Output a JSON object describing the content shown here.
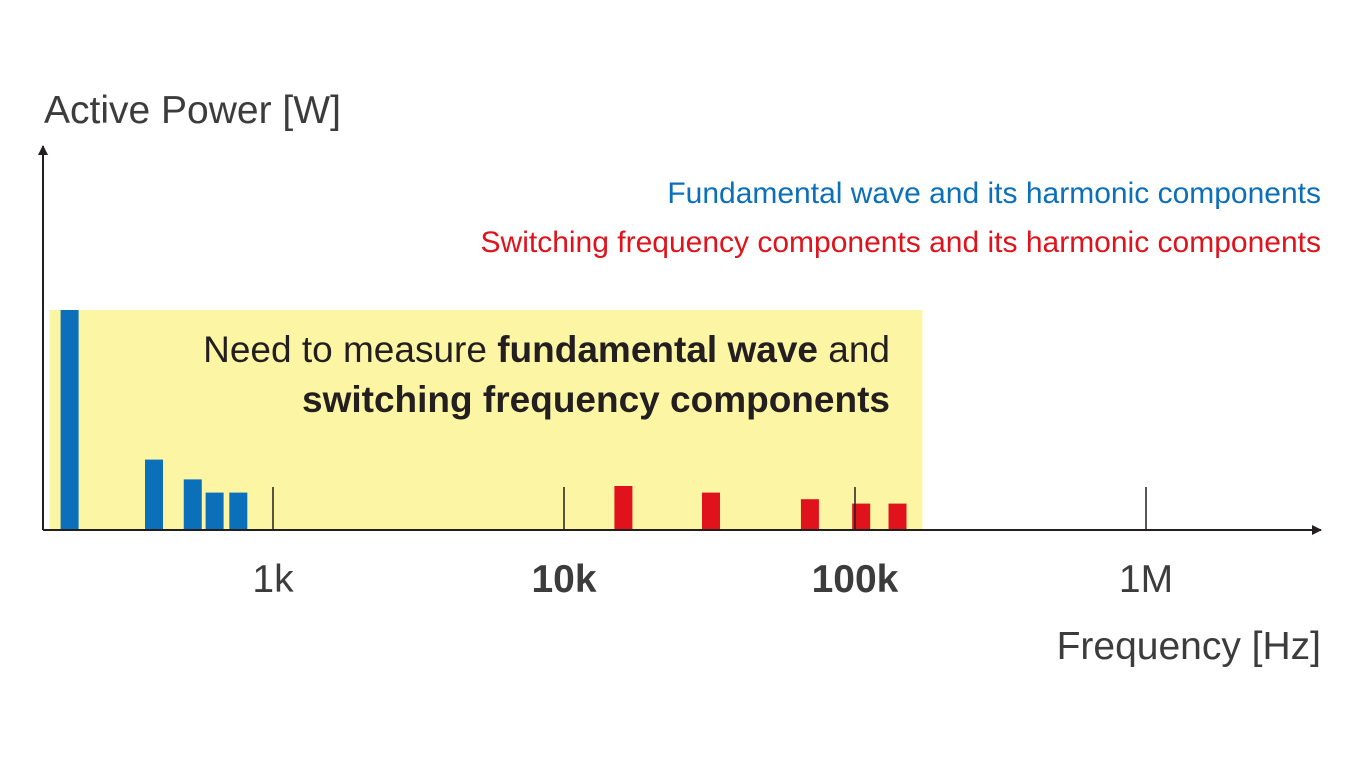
{
  "chart_data": {
    "type": "bar",
    "xscale": "log",
    "ylabel": "Active Power [W]",
    "xlabel": "Frequency [Hz]",
    "xticks": [
      {
        "value": 1000,
        "label": "1k",
        "bold": false
      },
      {
        "value": 10000,
        "label": "10k",
        "bold": true
      },
      {
        "value": 100000,
        "label": "100k",
        "bold": true
      },
      {
        "value": 1000000,
        "label": "1M",
        "bold": false
      }
    ],
    "legend": [
      {
        "text": "Fundamental wave and its harmonic components",
        "color": "#0b6fba"
      },
      {
        "text": "Switching frequency components and its harmonic components",
        "color": "#e0121b"
      }
    ],
    "series": [
      {
        "color": "#0b6fba",
        "points": [
          {
            "x": 200,
            "y": 1.0
          },
          {
            "x": 390,
            "y": 0.32
          },
          {
            "x": 530,
            "y": 0.23
          },
          {
            "x": 630,
            "y": 0.17
          },
          {
            "x": 760,
            "y": 0.17
          }
        ]
      },
      {
        "color": "#e0121b",
        "points": [
          {
            "x": 16000,
            "y": 0.2
          },
          {
            "x": 32000,
            "y": 0.17
          },
          {
            "x": 70000,
            "y": 0.14
          },
          {
            "x": 105000,
            "y": 0.12
          },
          {
            "x": 140000,
            "y": 0.12
          }
        ]
      }
    ],
    "annotation": {
      "line1_parts": [
        {
          "text": "Need to measure ",
          "bold": false
        },
        {
          "text": "fundamental wave",
          "bold": true
        },
        {
          "text": " and",
          "bold": false
        }
      ],
      "line2": "switching frequency components",
      "highlight_color": "#fbf5a4",
      "highlight_from_hz": 200,
      "highlight_to_hz": 160000
    }
  }
}
